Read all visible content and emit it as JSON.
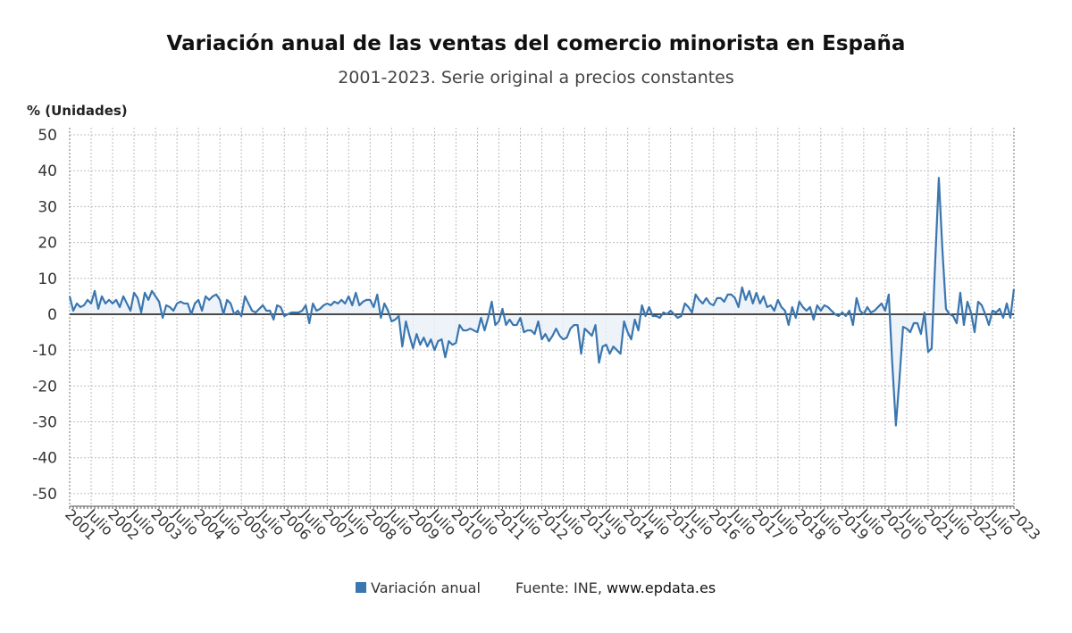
{
  "chart_data": {
    "type": "line",
    "title": "Variación anual de las ventas del comercio minorista en España",
    "subtitle": "2001-2023. Serie original a precios constantes",
    "y_label": "% (Unidades)",
    "source_label": "Fuente: INE,",
    "source_link": "www.epdata.es",
    "ylim": [
      -53.5,
      52
    ],
    "yticks": [
      -50,
      -40,
      -30,
      -20,
      -10,
      0,
      10,
      20,
      30,
      40,
      50
    ],
    "grid": true,
    "legend": "bottom",
    "categories": [
      "2001",
      null,
      null,
      null,
      null,
      null,
      "Julio",
      null,
      null,
      null,
      null,
      null,
      "2002",
      null,
      null,
      null,
      null,
      null,
      "Julio",
      null,
      null,
      null,
      null,
      null,
      "2003",
      null,
      null,
      null,
      null,
      null,
      "Julio",
      null,
      null,
      null,
      null,
      null,
      "2004",
      null,
      null,
      null,
      null,
      null,
      "Julio",
      null,
      null,
      null,
      null,
      null,
      "2005",
      null,
      null,
      null,
      null,
      null,
      "Julio",
      null,
      null,
      null,
      null,
      null,
      "2006",
      null,
      null,
      null,
      null,
      null,
      "Julio",
      null,
      null,
      null,
      null,
      null,
      "2007",
      null,
      null,
      null,
      null,
      null,
      "Julio",
      null,
      null,
      null,
      null,
      null,
      "2008",
      null,
      null,
      null,
      null,
      null,
      "Julio",
      null,
      null,
      null,
      null,
      null,
      "2009",
      null,
      null,
      null,
      null,
      null,
      "Julio",
      null,
      null,
      null,
      null,
      null,
      "2010",
      null,
      null,
      null,
      null,
      null,
      "Julio",
      null,
      null,
      null,
      null,
      null,
      "2011",
      null,
      null,
      null,
      null,
      null,
      "Julio",
      null,
      null,
      null,
      null,
      null,
      "2012",
      null,
      null,
      null,
      null,
      null,
      "Julio",
      null,
      null,
      null,
      null,
      null,
      "2013",
      null,
      null,
      null,
      null,
      null,
      "Julio",
      null,
      null,
      null,
      null,
      null,
      "2014",
      null,
      null,
      null,
      null,
      null,
      "Julio",
      null,
      null,
      null,
      null,
      null,
      "2015",
      null,
      null,
      null,
      null,
      null,
      "Julio",
      null,
      null,
      null,
      null,
      null,
      "2016",
      null,
      null,
      null,
      null,
      null,
      "Julio",
      null,
      null,
      null,
      null,
      null,
      "2017",
      null,
      null,
      null,
      null,
      null,
      "Julio",
      null,
      null,
      null,
      null,
      null,
      "2018",
      null,
      null,
      null,
      null,
      null,
      "Julio",
      null,
      null,
      null,
      null,
      null,
      "2019",
      null,
      null,
      null,
      null,
      null,
      "Julio",
      null,
      null,
      null,
      null,
      null,
      "2020",
      null,
      null,
      null,
      null,
      null,
      "Julio",
      null,
      null,
      null,
      null,
      null,
      "2021",
      null,
      null,
      null,
      null,
      null,
      "Julio",
      null,
      null,
      null,
      null,
      null,
      "2022",
      null,
      null,
      null,
      null,
      null,
      "Julio",
      null,
      null,
      null,
      null,
      null,
      "2023"
    ],
    "series": [
      {
        "name": "Variación anual",
        "color": "#3a76af",
        "values": [
          5,
          1,
          3,
          2,
          2.5,
          4,
          3,
          6.5,
          1.5,
          5,
          3,
          4,
          3,
          4,
          2,
          5,
          3,
          1,
          6,
          4.5,
          0.5,
          6,
          4,
          6.5,
          5,
          3.5,
          -1,
          2.5,
          2,
          1,
          3,
          3.5,
          3,
          3,
          0,
          3,
          4,
          1,
          5,
          4,
          5,
          5.5,
          4,
          0,
          4,
          3,
          0,
          1,
          -0.5,
          5,
          3,
          1,
          0.5,
          1.5,
          2.5,
          1,
          1,
          -1.5,
          2.5,
          2,
          -0.5,
          0,
          0.5,
          0.5,
          0.5,
          1,
          2.5,
          -2.5,
          3,
          1,
          1.5,
          2.5,
          3,
          2.5,
          3.5,
          3,
          4,
          3,
          5,
          2.5,
          6,
          2.5,
          3.5,
          4,
          4,
          2,
          5.5,
          -1,
          3,
          1,
          -2,
          -1.5,
          -0.5,
          -9,
          -2,
          -6,
          -9.5,
          -5.5,
          -8.5,
          -6.5,
          -9,
          -7,
          -10,
          -7.5,
          -7,
          -12,
          -7.5,
          -8.5,
          -8,
          -3,
          -4.5,
          -4.5,
          -4,
          -4.5,
          -5,
          -1,
          -4.5,
          -1,
          3.5,
          -3,
          -2,
          1.5,
          -3,
          -1.5,
          -3,
          -3,
          -1,
          -5,
          -4.5,
          -4.5,
          -5.5,
          -2,
          -7,
          -5.5,
          -7.5,
          -6,
          -4,
          -6,
          -7,
          -6.5,
          -4,
          -3,
          -3,
          -11,
          -4,
          -5,
          -6,
          -3,
          -13.5,
          -9,
          -8.5,
          -11,
          -9,
          -10,
          -11,
          -2,
          -5,
          -7,
          -1.5,
          -4.5,
          2.5,
          -0.5,
          2,
          -0.5,
          -0.5,
          -1,
          0.5,
          0,
          1,
          0,
          -1,
          -0.5,
          3,
          2,
          0.5,
          5.5,
          4,
          3,
          4.5,
          3,
          2.5,
          4.5,
          4.5,
          3.5,
          5.5,
          5.5,
          4.5,
          2,
          7.5,
          4,
          6.5,
          3,
          6,
          3,
          5,
          2,
          2.5,
          1,
          4,
          2,
          1,
          -3,
          2,
          -1,
          3.5,
          2,
          1,
          2,
          -1.5,
          2.5,
          1,
          2.5,
          2,
          1,
          0,
          -0.5,
          0.5,
          -0.5,
          1,
          -3,
          4.5,
          1,
          0,
          2,
          0.5,
          1,
          2,
          3,
          1,
          5.5,
          -14,
          -31,
          -18,
          -3.5,
          -4,
          -5,
          -2.5,
          -2.5,
          -5.5,
          0.5,
          -10.5,
          -9.5,
          15,
          38,
          18,
          1.5,
          0,
          -0.5,
          -2.5,
          6,
          -3,
          3.5,
          0.5,
          -5,
          3.5,
          2.5,
          0,
          -3,
          1,
          0.5,
          1.5,
          -1,
          3,
          -1,
          7
        ]
      }
    ]
  }
}
